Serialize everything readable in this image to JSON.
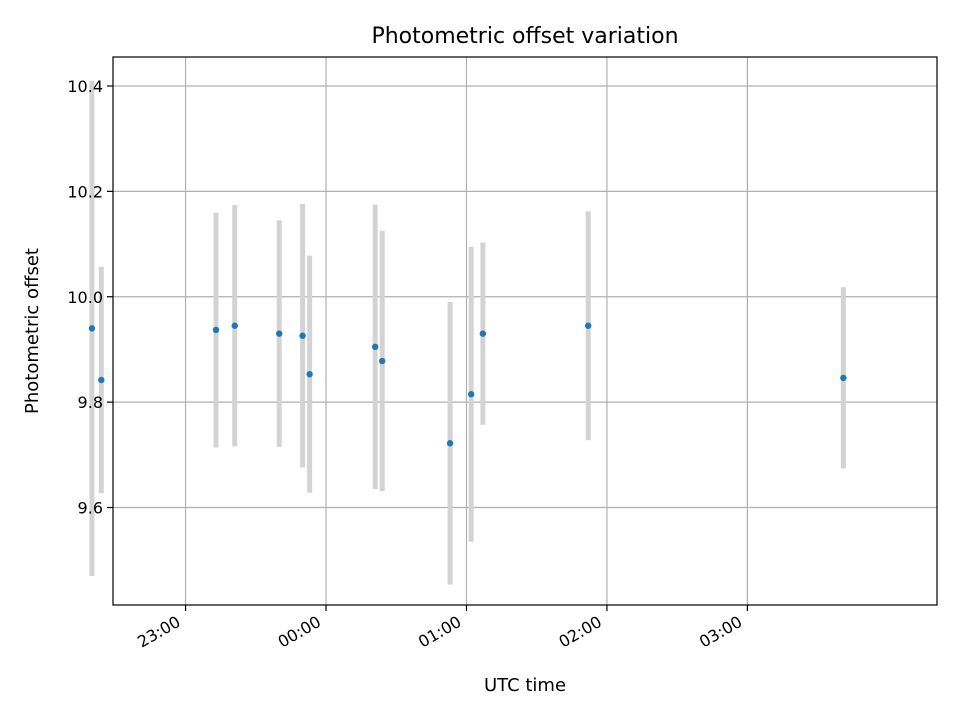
{
  "chart_data": {
    "type": "scatter",
    "title": "Photometric offset variation",
    "xlabel": "UTC time",
    "ylabel": "Photometric offset",
    "x_axis_type": "time",
    "x_ticks": [
      "23:00",
      "00:00",
      "01:00",
      "02:00",
      "03:00"
    ],
    "y_ticks": [
      "9.6",
      "9.8",
      "10.0",
      "10.2",
      "10.4"
    ],
    "xlim": [
      "22:29",
      "04:21"
    ],
    "ylim": [
      9.415,
      10.455
    ],
    "grid": true,
    "marker_color": "#1f77b4",
    "errorbar_color": "#d3d3d3",
    "points": [
      {
        "x": "22:20",
        "y": 9.94,
        "yerr": 0.47
      },
      {
        "x": "22:24",
        "y": 9.842,
        "yerr": 0.215
      },
      {
        "x": "23:13",
        "y": 9.937,
        "yerr": 0.223
      },
      {
        "x": "23:21",
        "y": 9.945,
        "yerr": 0.229
      },
      {
        "x": "23:40",
        "y": 9.93,
        "yerr": 0.215
      },
      {
        "x": "23:50",
        "y": 9.926,
        "yerr": 0.25
      },
      {
        "x": "23:53",
        "y": 9.853,
        "yerr": 0.225
      },
      {
        "x": "00:21",
        "y": 9.905,
        "yerr": 0.27
      },
      {
        "x": "00:24",
        "y": 9.878,
        "yerr": 0.247
      },
      {
        "x": "00:53",
        "y": 9.722,
        "yerr": 0.268
      },
      {
        "x": "01:02",
        "y": 9.815,
        "yerr": 0.28
      },
      {
        "x": "01:07",
        "y": 9.93,
        "yerr": 0.173
      },
      {
        "x": "01:52",
        "y": 9.945,
        "yerr": 0.217
      },
      {
        "x": "03:41",
        "y": 9.846,
        "yerr": 0.172
      }
    ]
  }
}
